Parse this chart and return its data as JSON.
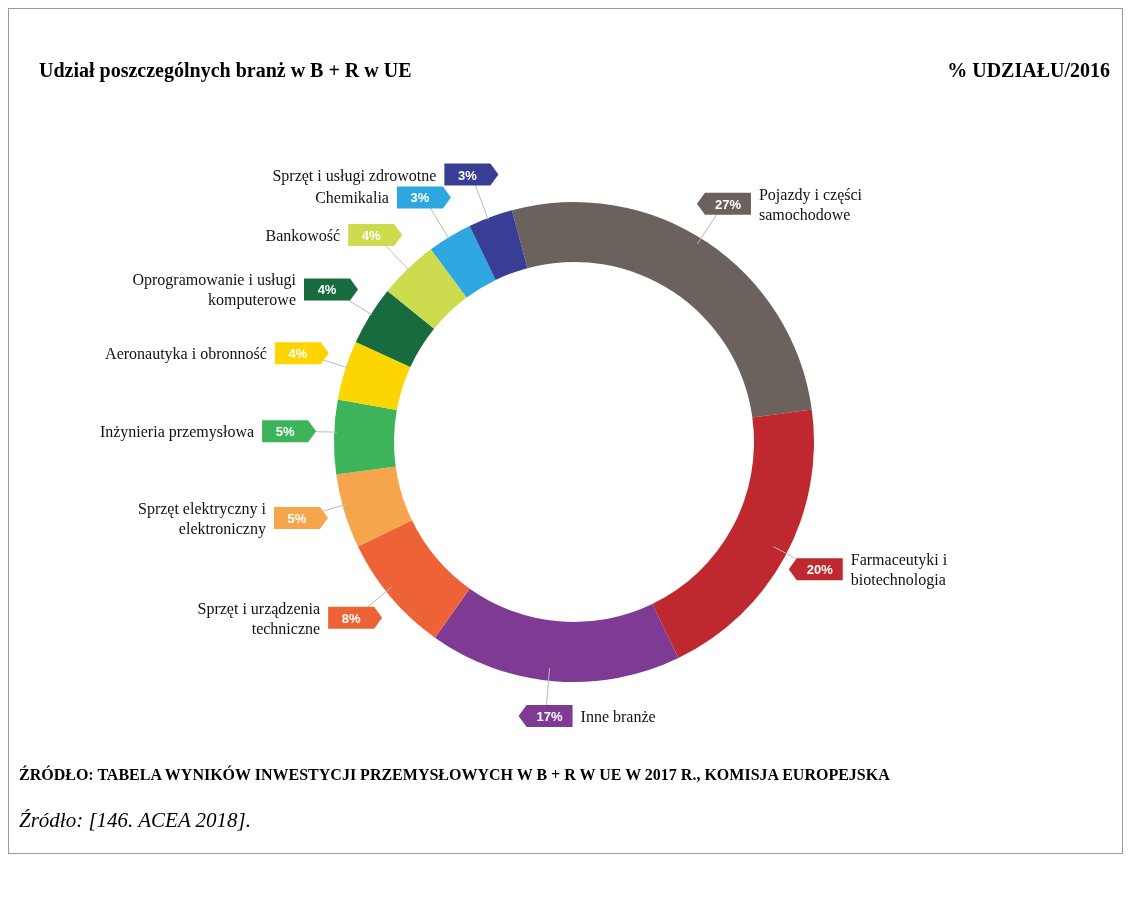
{
  "chart_data": {
    "type": "donut",
    "title": "Udział poszczególnych branż w B + R w UE",
    "subtitle": "% UDZIAŁU/2016",
    "categories": [
      "Pojazdy i części samochodowe",
      "Farmaceutyki i biotechnologia",
      "Inne branże",
      "Sprzęt i urządzenia techniczne",
      "Sprzęt elektryczny i elektroniczny",
      "Inżynieria przemysłowa",
      "Aeronautyka i obronność",
      "Oprogramowanie i usługi komputerowe",
      "Bankowość",
      "Chemikalia",
      "Sprzęt i usługi zdrowotne"
    ],
    "values": [
      27,
      20,
      17,
      8,
      5,
      5,
      4,
      4,
      4,
      3,
      3
    ],
    "value_labels": [
      "27%",
      "20%",
      "17%",
      "8%",
      "5%",
      "5%",
      "4%",
      "4%",
      "4%",
      "3%",
      "3%"
    ],
    "legend": "left",
    "colors": [
      "#6b625d",
      "#c0282f",
      "#7f3a94",
      "#ee6238",
      "#f6a54d",
      "#3db45a",
      "#fdd500",
      "#186b3e",
      "#cddb4f",
      "#2ea7e0",
      "#373e94"
    ],
    "annotations": [
      "ŹRÓDŁO: TABELA WYNIKÓW INWESTYCJI PRZEMYSŁOWYCH W B + R W UE W 2017 R., KOMISJA EUROPEJSKA",
      "Źródło: [146. ACEA 2018]."
    ]
  }
}
